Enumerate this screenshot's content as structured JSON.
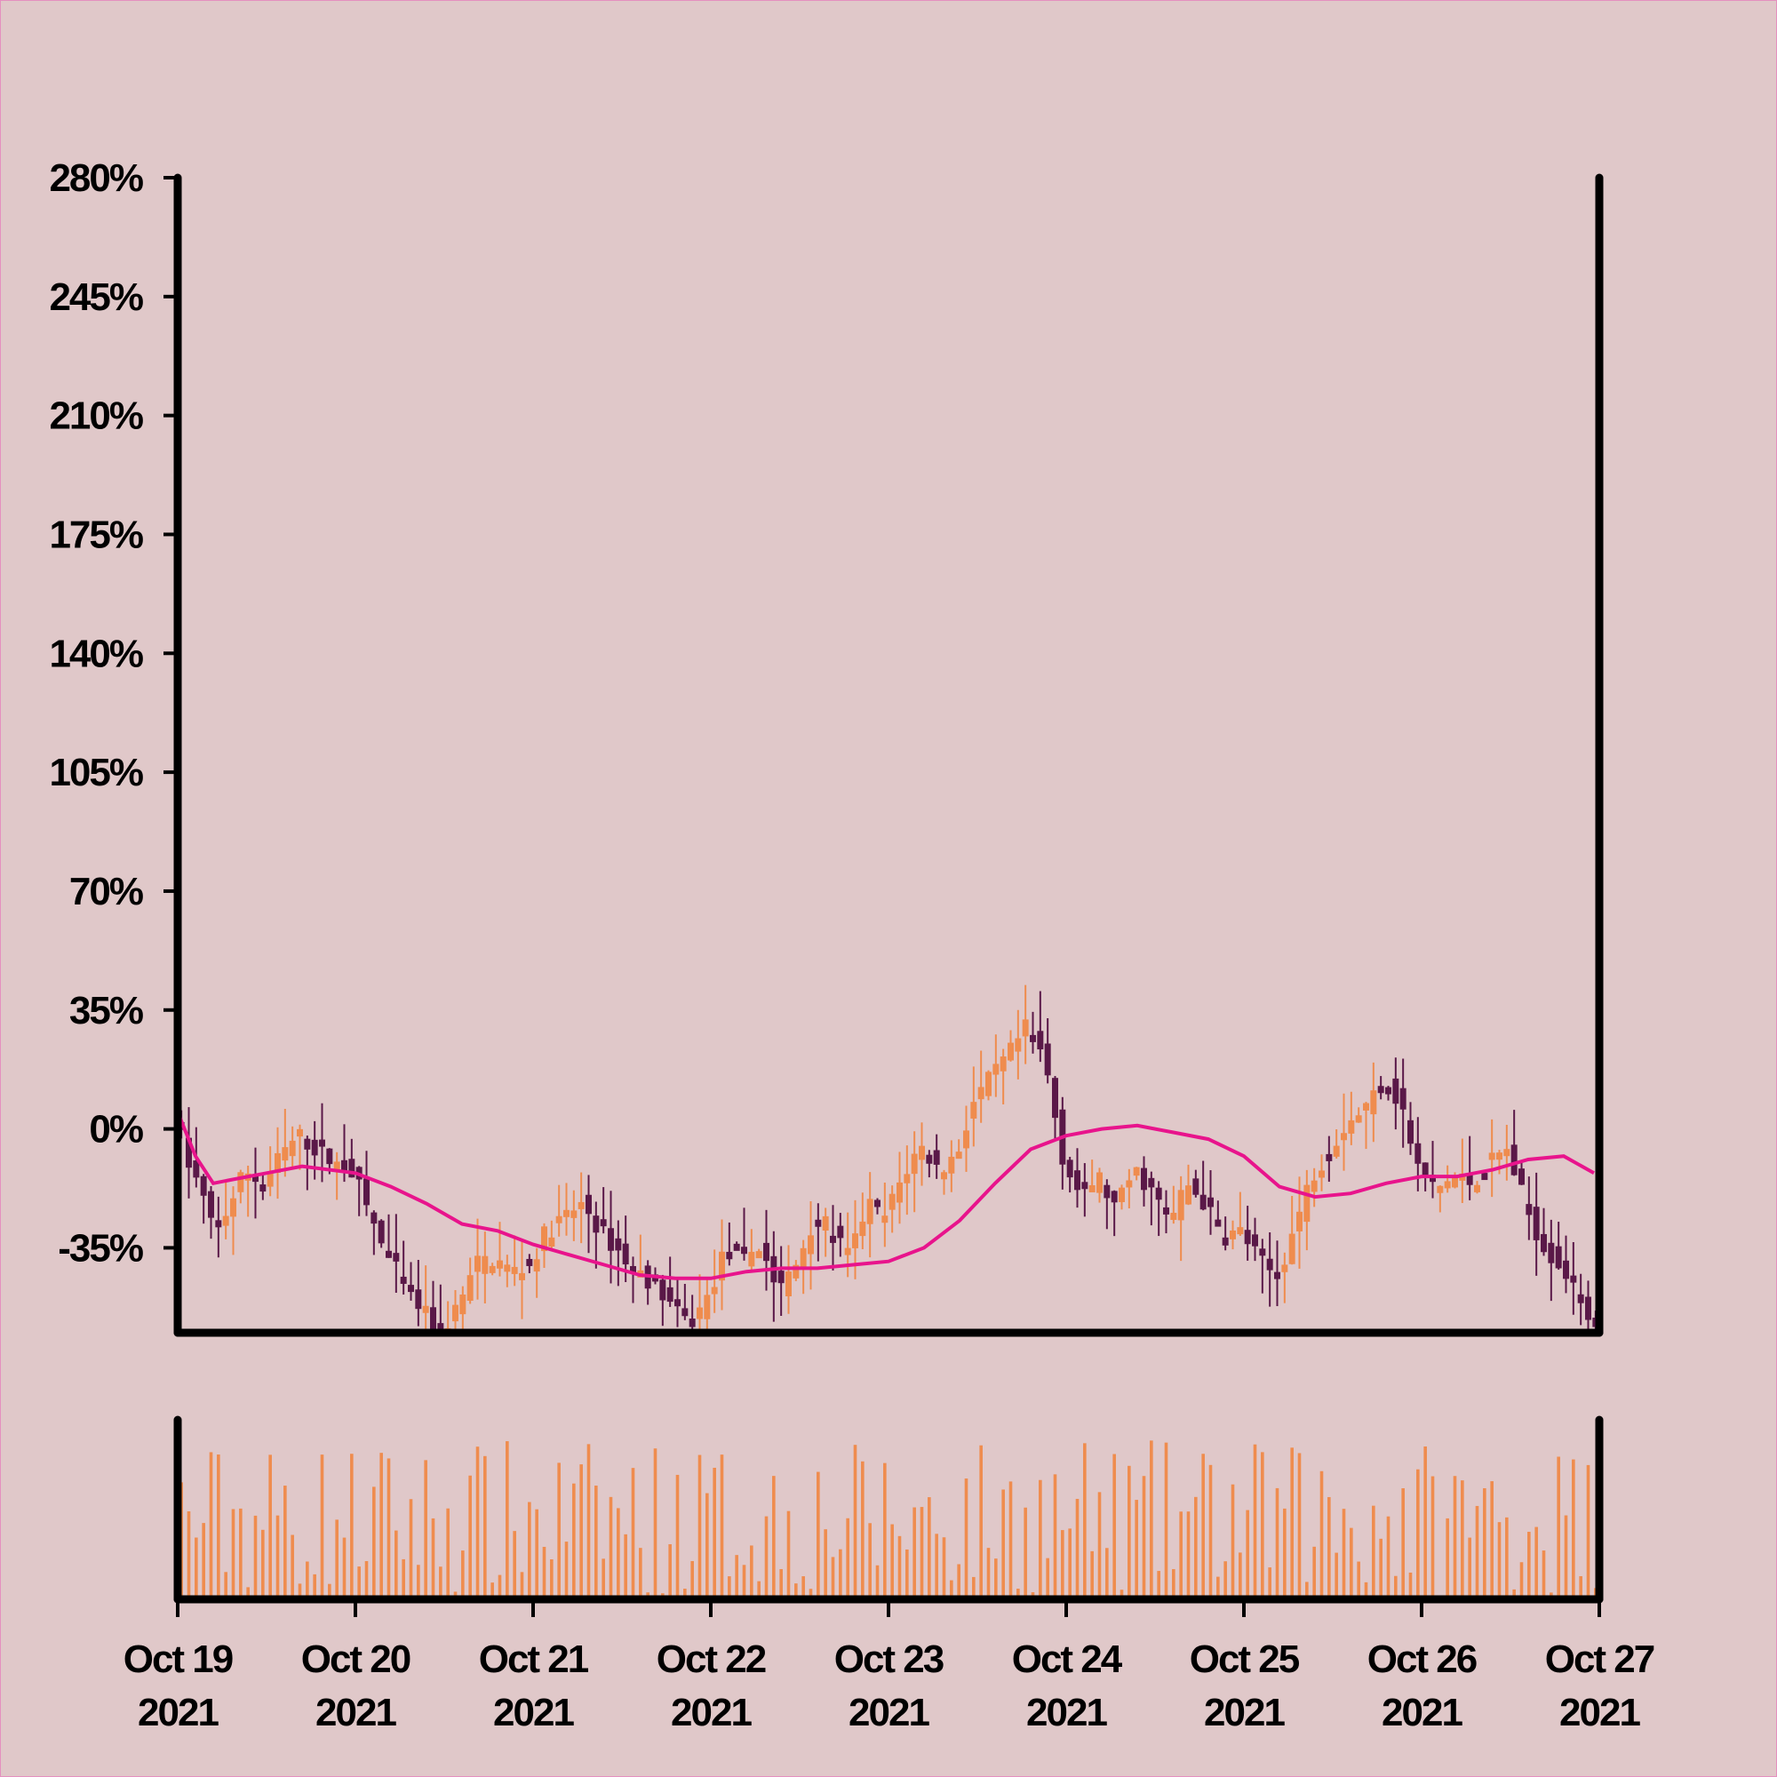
{
  "chart_data": {
    "type": "candlestick",
    "title": "",
    "xlabel": "",
    "ylabel": "",
    "ylim": [
      -60,
      280
    ],
    "y_ticks": [
      "280%",
      "245%",
      "210%",
      "175%",
      "140%",
      "105%",
      "70%",
      "35%",
      "0%",
      "-35%"
    ],
    "y_tick_values": [
      280,
      245,
      210,
      175,
      140,
      105,
      70,
      35,
      0,
      -35
    ],
    "x_range": [
      "2021-10-19",
      "2021-10-27"
    ],
    "x_ticks": [
      {
        "date": "2021-10-19",
        "line1": "Oct 19",
        "line2": "2021"
      },
      {
        "date": "2021-10-20",
        "line1": "Oct 20",
        "line2": "2021"
      },
      {
        "date": "2021-10-21",
        "line1": "Oct 21",
        "line2": "2021"
      },
      {
        "date": "2021-10-22",
        "line1": "Oct 22",
        "line2": "2021"
      },
      {
        "date": "2021-10-23",
        "line1": "Oct 23",
        "line2": "2021"
      },
      {
        "date": "2021-10-24",
        "line1": "Oct 24",
        "line2": "2021"
      },
      {
        "date": "2021-10-25",
        "line1": "Oct 25",
        "line2": "2021"
      },
      {
        "date": "2021-10-26",
        "line1": "Oct 26",
        "line2": "2021"
      },
      {
        "date": "2021-10-27",
        "line1": "Oct 27",
        "line2": "2021"
      }
    ],
    "grid": false,
    "has_volume_panel": true,
    "colors": {
      "background": "#e0c8c9",
      "up": "#ef8c4e",
      "down": "#5a1848",
      "moving_average": "#e8148c",
      "volume": "#ef8c4e",
      "axis": "#000000"
    },
    "close_path": [
      {
        "t": 0.0,
        "v": 5
      },
      {
        "t": 0.08,
        "v": -10
      },
      {
        "t": 0.15,
        "v": -18
      },
      {
        "t": 0.22,
        "v": -30
      },
      {
        "t": 0.3,
        "v": -24
      },
      {
        "t": 0.4,
        "v": -12
      },
      {
        "t": 0.5,
        "v": -16
      },
      {
        "t": 0.6,
        "v": -8
      },
      {
        "t": 0.7,
        "v": -2
      },
      {
        "t": 0.8,
        "v": -6
      },
      {
        "t": 0.9,
        "v": -10
      },
      {
        "t": 1.0,
        "v": -12
      },
      {
        "t": 1.1,
        "v": -25
      },
      {
        "t": 1.2,
        "v": -38
      },
      {
        "t": 1.3,
        "v": -46
      },
      {
        "t": 1.4,
        "v": -54
      },
      {
        "t": 1.5,
        "v": -60
      },
      {
        "t": 1.6,
        "v": -52
      },
      {
        "t": 1.7,
        "v": -40
      },
      {
        "t": 1.8,
        "v": -38
      },
      {
        "t": 1.9,
        "v": -42
      },
      {
        "t": 2.0,
        "v": -40
      },
      {
        "t": 2.1,
        "v": -30
      },
      {
        "t": 2.2,
        "v": -26
      },
      {
        "t": 2.3,
        "v": -22
      },
      {
        "t": 2.4,
        "v": -30
      },
      {
        "t": 2.5,
        "v": -36
      },
      {
        "t": 2.6,
        "v": -42
      },
      {
        "t": 2.7,
        "v": -45
      },
      {
        "t": 2.8,
        "v": -52
      },
      {
        "t": 2.9,
        "v": -58
      },
      {
        "t": 3.0,
        "v": -50
      },
      {
        "t": 3.1,
        "v": -36
      },
      {
        "t": 3.2,
        "v": -38
      },
      {
        "t": 3.3,
        "v": -34
      },
      {
        "t": 3.4,
        "v": -48
      },
      {
        "t": 3.5,
        "v": -40
      },
      {
        "t": 3.6,
        "v": -26
      },
      {
        "t": 3.7,
        "v": -30
      },
      {
        "t": 3.8,
        "v": -38
      },
      {
        "t": 3.9,
        "v": -22
      },
      {
        "t": 4.0,
        "v": -26
      },
      {
        "t": 4.1,
        "v": -14
      },
      {
        "t": 4.2,
        "v": -5
      },
      {
        "t": 4.3,
        "v": -12
      },
      {
        "t": 4.4,
        "v": -8
      },
      {
        "t": 4.5,
        "v": 8
      },
      {
        "t": 4.6,
        "v": 15
      },
      {
        "t": 4.7,
        "v": 22
      },
      {
        "t": 4.8,
        "v": 30
      },
      {
        "t": 4.9,
        "v": 20
      },
      {
        "t": 5.0,
        "v": -8
      },
      {
        "t": 5.1,
        "v": -20
      },
      {
        "t": 5.2,
        "v": -14
      },
      {
        "t": 5.3,
        "v": -24
      },
      {
        "t": 5.4,
        "v": -12
      },
      {
        "t": 5.5,
        "v": -18
      },
      {
        "t": 5.6,
        "v": -28
      },
      {
        "t": 5.7,
        "v": -16
      },
      {
        "t": 5.8,
        "v": -22
      },
      {
        "t": 5.9,
        "v": -32
      },
      {
        "t": 6.0,
        "v": -30
      },
      {
        "t": 6.1,
        "v": -38
      },
      {
        "t": 6.2,
        "v": -44
      },
      {
        "t": 6.3,
        "v": -30
      },
      {
        "t": 6.4,
        "v": -14
      },
      {
        "t": 6.5,
        "v": -6
      },
      {
        "t": 6.6,
        "v": 2
      },
      {
        "t": 6.7,
        "v": 6
      },
      {
        "t": 6.8,
        "v": 14
      },
      {
        "t": 6.9,
        "v": 8
      },
      {
        "t": 7.0,
        "v": -12
      },
      {
        "t": 7.1,
        "v": -18
      },
      {
        "t": 7.2,
        "v": -14
      },
      {
        "t": 7.3,
        "v": -16
      },
      {
        "t": 7.4,
        "v": -10
      },
      {
        "t": 7.5,
        "v": -6
      },
      {
        "t": 7.6,
        "v": -22
      },
      {
        "t": 7.7,
        "v": -34
      },
      {
        "t": 7.8,
        "v": -40
      },
      {
        "t": 7.9,
        "v": -48
      },
      {
        "t": 7.97,
        "v": -56
      }
    ],
    "moving_average": [
      {
        "t": 0.0,
        "v": 5
      },
      {
        "t": 0.1,
        "v": -8
      },
      {
        "t": 0.2,
        "v": -16
      },
      {
        "t": 0.3,
        "v": -15
      },
      {
        "t": 0.5,
        "v": -13
      },
      {
        "t": 0.7,
        "v": -11
      },
      {
        "t": 1.0,
        "v": -13
      },
      {
        "t": 1.2,
        "v": -17
      },
      {
        "t": 1.4,
        "v": -22
      },
      {
        "t": 1.6,
        "v": -28
      },
      {
        "t": 1.8,
        "v": -30
      },
      {
        "t": 2.0,
        "v": -34
      },
      {
        "t": 2.2,
        "v": -37
      },
      {
        "t": 2.4,
        "v": -40
      },
      {
        "t": 2.6,
        "v": -43
      },
      {
        "t": 2.8,
        "v": -44
      },
      {
        "t": 3.0,
        "v": -44
      },
      {
        "t": 3.2,
        "v": -42
      },
      {
        "t": 3.4,
        "v": -41
      },
      {
        "t": 3.6,
        "v": -41
      },
      {
        "t": 3.8,
        "v": -40
      },
      {
        "t": 4.0,
        "v": -39
      },
      {
        "t": 4.2,
        "v": -35
      },
      {
        "t": 4.4,
        "v": -27
      },
      {
        "t": 4.6,
        "v": -16
      },
      {
        "t": 4.8,
        "v": -6
      },
      {
        "t": 5.0,
        "v": -2
      },
      {
        "t": 5.2,
        "v": 0
      },
      {
        "t": 5.4,
        "v": 1
      },
      {
        "t": 5.6,
        "v": -1
      },
      {
        "t": 5.8,
        "v": -3
      },
      {
        "t": 6.0,
        "v": -8
      },
      {
        "t": 6.2,
        "v": -17
      },
      {
        "t": 6.4,
        "v": -20
      },
      {
        "t": 6.6,
        "v": -19
      },
      {
        "t": 6.8,
        "v": -16
      },
      {
        "t": 7.0,
        "v": -14
      },
      {
        "t": 7.2,
        "v": -14
      },
      {
        "t": 7.4,
        "v": -12
      },
      {
        "t": 7.6,
        "v": -9
      },
      {
        "t": 7.8,
        "v": -8
      },
      {
        "t": 7.97,
        "v": -13
      }
    ]
  }
}
